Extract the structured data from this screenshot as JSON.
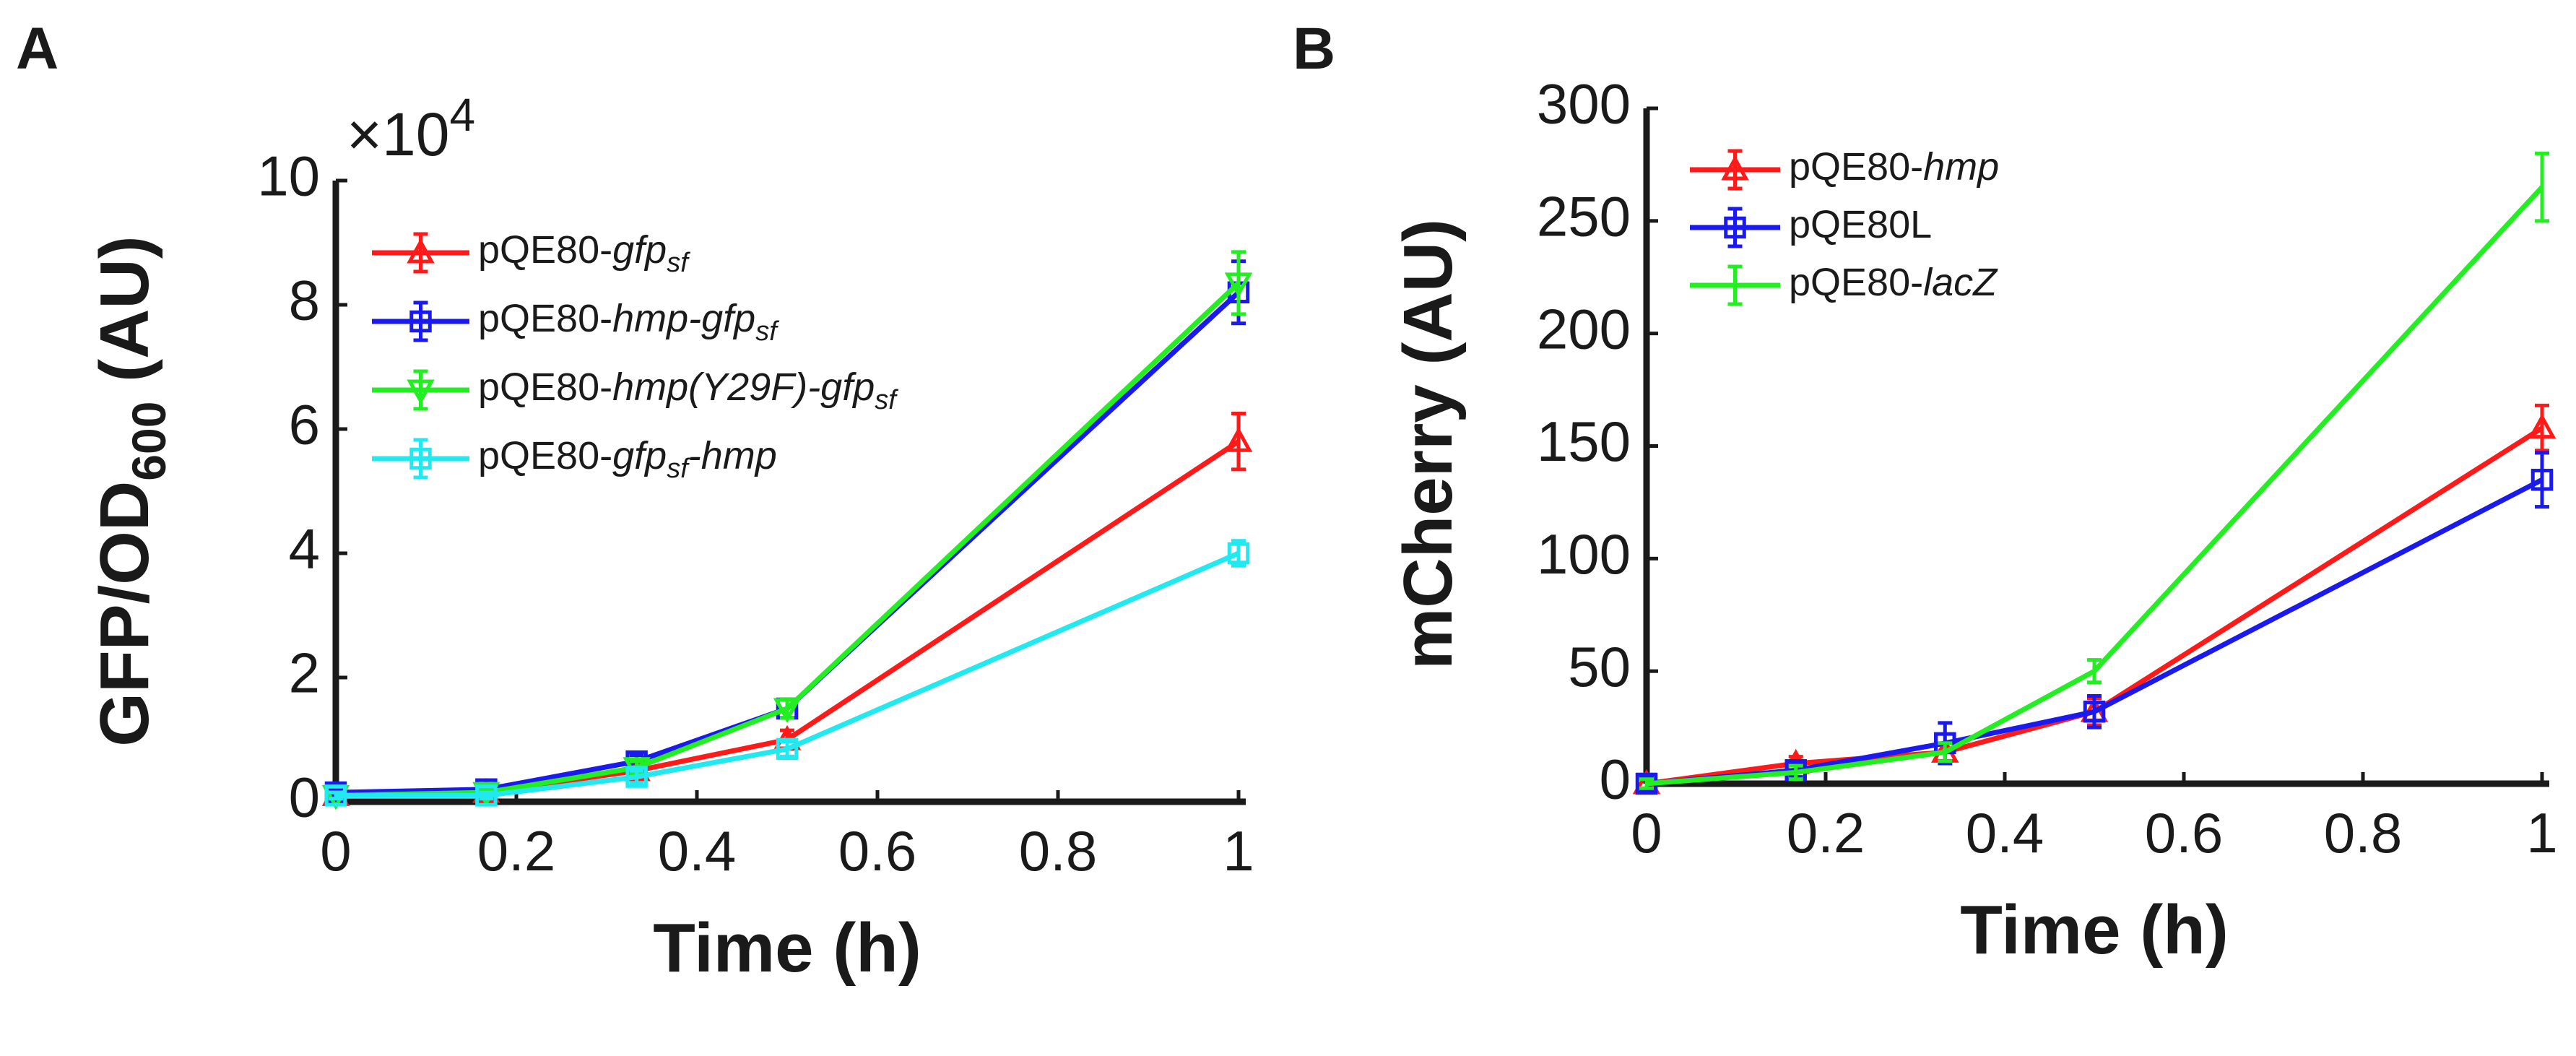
{
  "chart_data": [
    {
      "panel": "A",
      "type": "line",
      "xlabel": "Time (h)",
      "ylabel": "GFP/OD",
      "ylabel_sub": "600",
      "ylabel_tail": " (AU)",
      "y_multiplier": "×10",
      "y_multiplier_exp": "4",
      "xlim": [
        0,
        1
      ],
      "ylim": [
        0,
        10
      ],
      "xticks": [
        0,
        0.2,
        0.4,
        0.6,
        0.8,
        1
      ],
      "xtick_labels": [
        "0",
        "0.2",
        "0.4",
        "0.6",
        "0.8",
        "1"
      ],
      "yticks": [
        0,
        2,
        4,
        6,
        8,
        10
      ],
      "ytick_labels": [
        "0",
        "2",
        "4",
        "6",
        "8",
        "10"
      ],
      "legend_position": "top-left",
      "series": [
        {
          "name": "pQE80-gfp_sf",
          "legend_parts": [
            {
              "t": "pQE80-",
              "style": "normal"
            },
            {
              "t": "gfp",
              "style": "italic"
            },
            {
              "t": "sf",
              "style": "italic-sub"
            }
          ],
          "color": "#ff1a1a",
          "marker": "triangle-up",
          "x": [
            0,
            0.1667,
            0.3333,
            0.5,
            1
          ],
          "y": [
            0.1,
            0.15,
            0.5,
            1.0,
            5.8
          ],
          "err": [
            0.05,
            0.05,
            0.1,
            0.15,
            0.45
          ]
        },
        {
          "name": "pQE80-hmp-gfp_sf",
          "legend_parts": [
            {
              "t": "pQE80-",
              "style": "normal"
            },
            {
              "t": "hmp-gfp",
              "style": "italic"
            },
            {
              "t": "sf",
              "style": "italic-sub"
            }
          ],
          "color": "#1a1aee",
          "marker": "square",
          "x": [
            0,
            0.1667,
            0.3333,
            0.5,
            1
          ],
          "y": [
            0.15,
            0.2,
            0.65,
            1.5,
            8.2
          ],
          "err": [
            0.05,
            0.05,
            0.1,
            0.15,
            0.5
          ]
        },
        {
          "name": "pQE80-hmp(Y29F)-gfp_sf",
          "legend_parts": [
            {
              "t": "pQE80-",
              "style": "normal"
            },
            {
              "t": "hmp(Y29F)-gfp",
              "style": "italic"
            },
            {
              "t": "sf",
              "style": "italic-sub"
            }
          ],
          "color": "#22ee22",
          "marker": "triangle-down",
          "x": [
            0,
            0.1667,
            0.3333,
            0.5,
            1
          ],
          "y": [
            0.1,
            0.15,
            0.55,
            1.5,
            8.35
          ],
          "err": [
            0.05,
            0.05,
            0.1,
            0.15,
            0.5
          ]
        },
        {
          "name": "pQE80-gfp_sf-hmp",
          "legend_parts": [
            {
              "t": "pQE80-",
              "style": "normal"
            },
            {
              "t": "gfp",
              "style": "italic"
            },
            {
              "t": "sf",
              "style": "italic-sub"
            },
            {
              "t": "-hmp",
              "style": "italic"
            }
          ],
          "color": "#22e8f0",
          "marker": "square",
          "x": [
            0,
            0.1667,
            0.3333,
            0.5,
            1
          ],
          "y": [
            0.1,
            0.1,
            0.4,
            0.85,
            4.0
          ],
          "err": [
            0.05,
            0.05,
            0.1,
            0.12,
            0.2
          ]
        }
      ]
    },
    {
      "panel": "B",
      "type": "line",
      "xlabel": "Time (h)",
      "ylabel": "mCherry (AU)",
      "xlim": [
        0,
        1
      ],
      "ylim": [
        0,
        300
      ],
      "xticks": [
        0,
        0.2,
        0.4,
        0.6,
        0.8,
        1
      ],
      "xtick_labels": [
        "0",
        "0.2",
        "0.4",
        "0.6",
        "0.8",
        "1"
      ],
      "yticks": [
        0,
        50,
        100,
        150,
        200,
        250,
        300
      ],
      "ytick_labels": [
        "0",
        "50",
        "100",
        "150",
        "200",
        "250",
        "300"
      ],
      "legend_position": "top-left",
      "series": [
        {
          "name": "pQE80-hmp",
          "legend_parts": [
            {
              "t": "pQE80-",
              "style": "normal"
            },
            {
              "t": "hmp",
              "style": "italic"
            }
          ],
          "color": "#ff1a1a",
          "marker": "triangle-up",
          "x": [
            0,
            0.1667,
            0.3333,
            0.5,
            1
          ],
          "y": [
            0,
            9,
            14,
            32,
            158
          ],
          "err": [
            3,
            3,
            4,
            6,
            10
          ]
        },
        {
          "name": "pQE80L",
          "legend_parts": [
            {
              "t": "pQE80L",
              "style": "normal"
            }
          ],
          "color": "#1a1aee",
          "marker": "square",
          "x": [
            0,
            0.1667,
            0.3333,
            0.5,
            1
          ],
          "y": [
            0,
            6,
            18,
            32,
            135
          ],
          "err": [
            3,
            3,
            9,
            7,
            12
          ]
        },
        {
          "name": "pQE80-lacZ",
          "legend_parts": [
            {
              "t": "pQE80-",
              "style": "normal"
            },
            {
              "t": "lacZ",
              "style": "italic"
            }
          ],
          "color": "#22ee22",
          "marker": "none",
          "x": [
            0,
            0.1667,
            0.3333,
            0.5,
            1
          ],
          "y": [
            0,
            5,
            14,
            50,
            265
          ],
          "err": [
            2,
            3,
            4,
            5,
            15
          ]
        }
      ]
    }
  ]
}
